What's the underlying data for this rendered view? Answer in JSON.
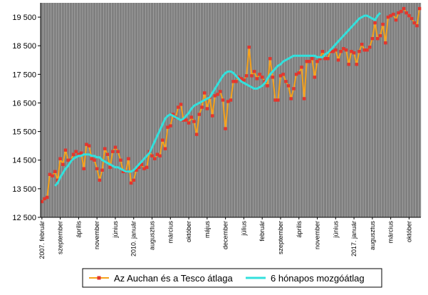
{
  "chart_data": {
    "type": "line",
    "ylim": [
      12500,
      20000
    ],
    "yticks": [
      12500,
      13500,
      14500,
      15500,
      16500,
      17500,
      18500,
      19500
    ],
    "x_tick_labels": [
      "2007. február",
      "szeptember",
      "április",
      "november",
      "június",
      "2010. január",
      "augusztus",
      "március",
      "október",
      "május",
      "december",
      "július",
      "február",
      "szeptember",
      "április",
      "november",
      "június",
      "2017. január",
      "augusztus",
      "március",
      "október"
    ],
    "x_tick_start_index": 0,
    "x_tick_step": 7,
    "grid": "vertical",
    "legend_position": "bottom",
    "series": [
      {
        "name": "Az Auchan és a Tesco átlaga",
        "color": "#F7A21B",
        "marker_color": "#E4352D",
        "marker": "square",
        "values": [
          13050,
          13150,
          13200,
          14000,
          13950,
          14100,
          13800,
          14550,
          14350,
          14850,
          14500,
          14500,
          14700,
          14800,
          14700,
          14750,
          14200,
          15050,
          15000,
          14550,
          14500,
          14200,
          13800,
          14150,
          14900,
          14700,
          14250,
          14800,
          14950,
          14800,
          14500,
          14100,
          14100,
          14550,
          13700,
          13800,
          14150,
          14250,
          14350,
          14200,
          14250,
          14800,
          14650,
          14550,
          14700,
          14650,
          15200,
          14900,
          15650,
          15700,
          16100,
          16000,
          16350,
          16450,
          15900,
          15900,
          15800,
          16000,
          15850,
          15400,
          16100,
          16350,
          16850,
          16300,
          16700,
          16050,
          16750,
          16800,
          16900,
          16600,
          15600,
          16550,
          16600,
          17250,
          17250,
          17400,
          17350,
          17300,
          17450,
          18450,
          17450,
          17600,
          17350,
          17500,
          17400,
          17250,
          17100,
          18050,
          17400,
          16600,
          16600,
          17450,
          17500,
          17250,
          17100,
          16650,
          17000,
          17500,
          17550,
          17750,
          16650,
          17950,
          17950,
          18050,
          17400,
          17950,
          18050,
          18300,
          18050,
          18050,
          18300,
          18300,
          18350,
          18000,
          18300,
          18400,
          18350,
          17850,
          18300,
          18250,
          17850,
          18300,
          18550,
          18350,
          18350,
          18450,
          18750,
          19300,
          18750,
          18850,
          19250,
          18600,
          19500,
          19550,
          19600,
          19400,
          19650,
          19700,
          19800,
          19650,
          19550,
          19450,
          19300,
          19200,
          19800
        ]
      },
      {
        "name": "6 hónapos mozgóátlag",
        "color": "#33E0DC",
        "start_index": 5,
        "values": [
          13600,
          13700,
          13900,
          14050,
          14200,
          14300,
          14450,
          14550,
          14600,
          14650,
          14650,
          14700,
          14700,
          14700,
          14650,
          14650,
          14600,
          14600,
          14500,
          14450,
          14400,
          14350,
          14300,
          14250,
          14250,
          14200,
          14150,
          14100,
          14100,
          14100,
          14150,
          14250,
          14350,
          14450,
          14550,
          14650,
          14750,
          14950,
          15150,
          15350,
          15550,
          15750,
          15950,
          16050,
          16100,
          16050,
          16000,
          15950,
          15900,
          15950,
          16050,
          16150,
          16300,
          16400,
          16450,
          16500,
          16550,
          16600,
          16650,
          16700,
          16850,
          17000,
          17150,
          17300,
          17450,
          17550,
          17600,
          17600,
          17550,
          17450,
          17350,
          17250,
          17200,
          17150,
          17100,
          17050,
          17000,
          17000,
          17050,
          17100,
          17200,
          17350,
          17500,
          17600,
          17700,
          17800,
          17850,
          17950,
          18000,
          18050,
          18100,
          18150,
          18150,
          18150,
          18150,
          18150,
          18150,
          18150,
          18150,
          18150,
          18100,
          18100,
          18100,
          18200,
          18250,
          18350,
          18450,
          18550,
          18650,
          18750,
          18850,
          18950,
          19050,
          19150,
          19250,
          19350,
          19450,
          19500,
          19550,
          19550,
          19500,
          19450,
          19400,
          19550,
          19650
        ]
      }
    ]
  }
}
